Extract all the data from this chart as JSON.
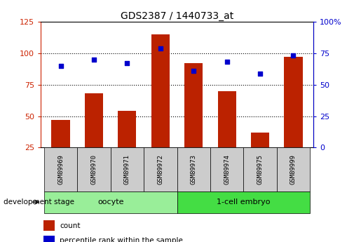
{
  "title": "GDS2387 / 1440733_at",
  "samples": [
    "GSM89969",
    "GSM89970",
    "GSM89971",
    "GSM89972",
    "GSM89973",
    "GSM89974",
    "GSM89975",
    "GSM89999"
  ],
  "counts": [
    47,
    68,
    54,
    115,
    92,
    70,
    37,
    97
  ],
  "percentiles": [
    65,
    70,
    67,
    79,
    61,
    68,
    59,
    73
  ],
  "ylim_left": [
    25,
    125
  ],
  "ylim_right": [
    0,
    100
  ],
  "bar_color": "#bb2200",
  "dot_color": "#0000cc",
  "bg_color": "#ffffff",
  "groups": [
    {
      "label": "oocyte",
      "start": 0,
      "end": 3,
      "color": "#99ee99"
    },
    {
      "label": "1-cell embryo",
      "start": 4,
      "end": 7,
      "color": "#44dd44"
    }
  ],
  "group_label_prefix": "development stage",
  "tick_left": [
    25,
    50,
    75,
    100,
    125
  ],
  "tick_right_labels": [
    "0",
    "25",
    "50",
    "75",
    "100%"
  ],
  "tick_right_vals": [
    0,
    25,
    50,
    75,
    100
  ],
  "left_color": "#cc2200",
  "right_color": "#0000cc",
  "grid_vals": [
    50,
    75,
    100
  ],
  "bar_bottom": 25
}
